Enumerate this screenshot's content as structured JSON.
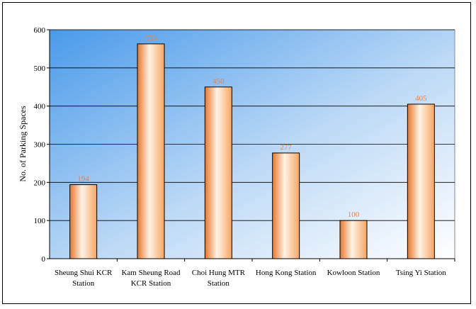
{
  "chart_data": {
    "type": "bar",
    "title": "",
    "xlabel": "",
    "ylabel": "No. of Parking Spaces",
    "ylim": [
      0,
      600
    ],
    "yticks": [
      0,
      100,
      200,
      300,
      400,
      500,
      600
    ],
    "grid": true,
    "categories": [
      [
        "Sheung Shui KCR",
        "Station"
      ],
      [
        "Kam Sheung Road",
        "KCR Station"
      ],
      [
        "Choi Hung MTR",
        "Station"
      ],
      [
        "Hong Kong Station"
      ],
      [
        "Kowloon Station"
      ],
      [
        "Tsing Yi Station"
      ]
    ],
    "values": [
      194,
      563,
      450,
      277,
      100,
      405
    ],
    "data_labels": [
      "194",
      "563",
      "450",
      "277",
      "100",
      "405"
    ],
    "colors": {
      "bar_light": "#fff3e6",
      "bar_mid": "#ffbf80",
      "bar_dark": "#e8762a",
      "plot_bg_top": "#5aa6ee",
      "plot_bg_bottom": "#ffffff",
      "label": "#e8844a"
    }
  }
}
